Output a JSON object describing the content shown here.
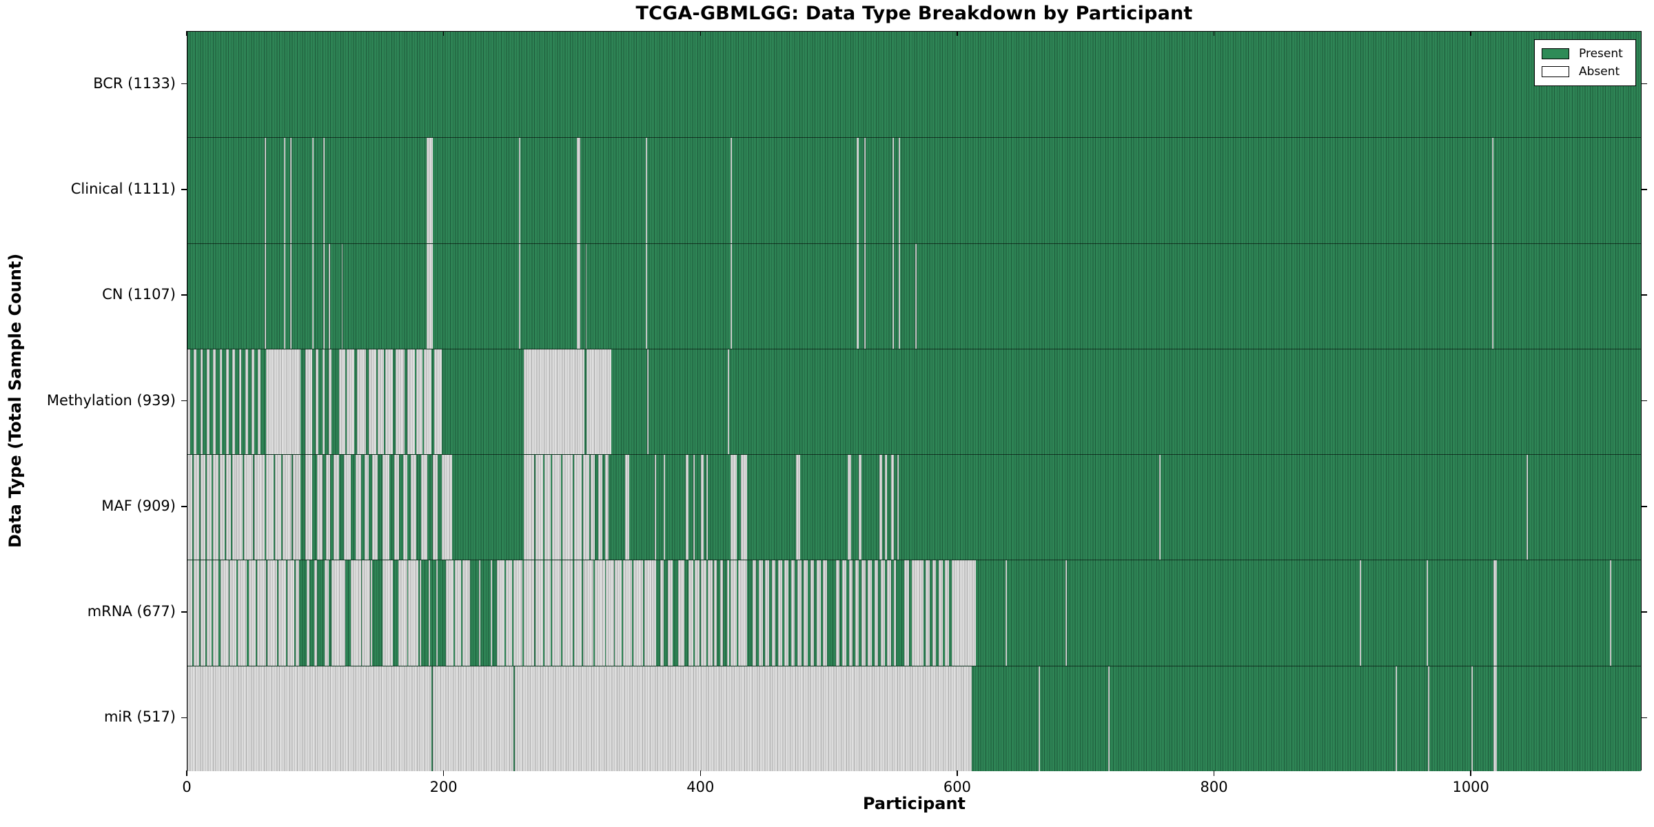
{
  "title": "TCGA-GBMLGG: Data Type Breakdown by Participant",
  "colors": {
    "present": "#2e8b57",
    "present_fill": "#2e8455",
    "absent_fill": "#d8d8d8",
    "absent_legend": "#ffffff",
    "frame": "#000000"
  },
  "legend": {
    "present_label": "Present",
    "absent_label": "Absent"
  },
  "chart_data": {
    "type": "heatmap",
    "title": "TCGA-GBMLGG: Data Type Breakdown by Participant",
    "xlabel": "Participant",
    "ylabel": "Data Type (Total Sample Count)",
    "legend": [
      "Present",
      "Absent"
    ],
    "legend_position": "upper right",
    "grid": false,
    "x_range": [
      0,
      1133
    ],
    "x_ticks": [
      0,
      200,
      400,
      600,
      800,
      1000
    ],
    "value_encoding": "green = data type present for participant, gray = absent; absent_segments are [start, end, fraction_absent] participant ranges, fraction omitted means fully absent",
    "rows": [
      {
        "label": "BCR (1133)",
        "data_type": "BCR",
        "total_samples": 1133,
        "absent_segments": []
      },
      {
        "label": "Clinical (1111)",
        "data_type": "Clinical",
        "total_samples": 1111,
        "absent_segments": [
          [
            60,
            61
          ],
          [
            75,
            76
          ],
          [
            80,
            81
          ],
          [
            97,
            98
          ],
          [
            106,
            107
          ],
          [
            186,
            191
          ],
          [
            258,
            259
          ],
          [
            303,
            306
          ],
          [
            357,
            358
          ],
          [
            423,
            424
          ],
          [
            521,
            523
          ],
          [
            527,
            528
          ],
          [
            549,
            550
          ],
          [
            554,
            555
          ],
          [
            1016,
            1017
          ]
        ]
      },
      {
        "label": "CN (1107)",
        "data_type": "CN",
        "total_samples": 1107,
        "absent_segments": [
          [
            60,
            61
          ],
          [
            75,
            76
          ],
          [
            80,
            81
          ],
          [
            97,
            98
          ],
          [
            106,
            107
          ],
          [
            110,
            111
          ],
          [
            120,
            121
          ],
          [
            186,
            191
          ],
          [
            258,
            259
          ],
          [
            303,
            306
          ],
          [
            310,
            311
          ],
          [
            357,
            358
          ],
          [
            423,
            424
          ],
          [
            521,
            523
          ],
          [
            527,
            528
          ],
          [
            549,
            550
          ],
          [
            554,
            555
          ],
          [
            567,
            568
          ],
          [
            1016,
            1017
          ]
        ]
      },
      {
        "label": "Methylation (939)",
        "data_type": "Methylation",
        "total_samples": 939,
        "absent_segments": [
          [
            0,
            60,
            0.3
          ],
          [
            61,
            88
          ],
          [
            92,
            97
          ],
          [
            100,
            113,
            0.35
          ],
          [
            118,
            198,
            0.8
          ],
          [
            262,
            309
          ],
          [
            311,
            330
          ],
          [
            358,
            359
          ],
          [
            421,
            422
          ]
        ]
      },
      {
        "label": "MAF (909)",
        "data_type": "MAF",
        "total_samples": 909,
        "absent_segments": [
          [
            0,
            38,
            0.95
          ],
          [
            38,
            84,
            0.9
          ],
          [
            84,
            198,
            0.5
          ],
          [
            198,
            206
          ],
          [
            262,
            317,
            0.95
          ],
          [
            320,
            330,
            0.5
          ],
          [
            341,
            344
          ],
          [
            364,
            365
          ],
          [
            371,
            372
          ],
          [
            388,
            390
          ],
          [
            394,
            395
          ],
          [
            400,
            402
          ],
          [
            404,
            405
          ],
          [
            423,
            429,
            0.8
          ],
          [
            431,
            436
          ],
          [
            474,
            477
          ],
          [
            514,
            517
          ],
          [
            523,
            525
          ],
          [
            539,
            541
          ],
          [
            543,
            545
          ],
          [
            548,
            550
          ],
          [
            553,
            554
          ],
          [
            757,
            758
          ],
          [
            1043,
            1044
          ]
        ]
      },
      {
        "label": "mRNA (677)",
        "data_type": "mRNA",
        "total_samples": 677,
        "absent_segments": [
          [
            0,
            24,
            0.96
          ],
          [
            26,
            46,
            0.95
          ],
          [
            48,
            87,
            0.95
          ],
          [
            93,
            112,
            0.3
          ],
          [
            112,
            123
          ],
          [
            127,
            144,
            0.9
          ],
          [
            152,
            160
          ],
          [
            164,
            181,
            0.85
          ],
          [
            181,
            201,
            0.15
          ],
          [
            201,
            219,
            0.8
          ],
          [
            219,
            241,
            0.1
          ],
          [
            241,
            309,
            0.93
          ],
          [
            309,
            361,
            0.95
          ],
          [
            361,
            390,
            0.5
          ],
          [
            390,
            410,
            0.8
          ],
          [
            410,
            423,
            0.3
          ],
          [
            423,
            437,
            0.85
          ],
          [
            440,
            500,
            0.6
          ],
          [
            505,
            552,
            0.65
          ],
          [
            558,
            570,
            0.7
          ],
          [
            570,
            595,
            0.5
          ],
          [
            595,
            614
          ],
          [
            637,
            638
          ],
          [
            684,
            685
          ],
          [
            913,
            914
          ],
          [
            965,
            966
          ],
          [
            1017,
            1020
          ],
          [
            1108,
            1109
          ]
        ]
      },
      {
        "label": "miR (517)",
        "data_type": "miR",
        "total_samples": 517,
        "absent_segments": [
          [
            0,
            190
          ],
          [
            191,
            254
          ],
          [
            255,
            611
          ],
          [
            663,
            664
          ],
          [
            717,
            718
          ],
          [
            941,
            942
          ],
          [
            966,
            967
          ],
          [
            1000,
            1001
          ],
          [
            1017,
            1020
          ]
        ]
      }
    ]
  }
}
